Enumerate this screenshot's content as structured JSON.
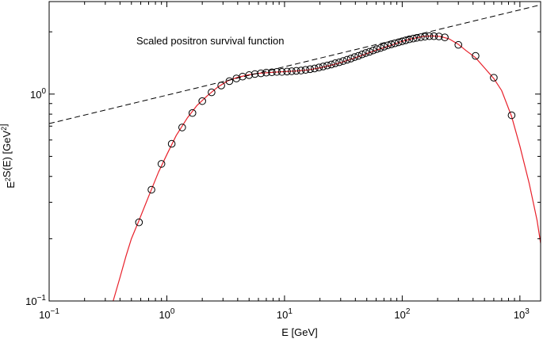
{
  "chart_data": {
    "type": "scatter",
    "title": "",
    "annotation": "Scaled positron survival function",
    "xlabel": "E [GeV]",
    "ylabel": "E^2 S(E) [GeV^2]",
    "xscale": "log",
    "yscale": "log",
    "xlim": [
      0.1,
      1500
    ],
    "ylim": [
      0.1,
      2.8
    ],
    "grid": false,
    "x_ticks": [
      {
        "value": 0.1,
        "base": "10",
        "exp": "−1"
      },
      {
        "value": 1,
        "base": "10",
        "exp": "0"
      },
      {
        "value": 10,
        "base": "10",
        "exp": "1"
      },
      {
        "value": 100,
        "base": "10",
        "exp": "2"
      },
      {
        "value": 1000,
        "base": "10",
        "exp": "3"
      }
    ],
    "y_ticks": [
      {
        "value": 0.1,
        "base": "10",
        "exp": "−1"
      },
      {
        "value": 1,
        "base": "10",
        "exp": "0"
      }
    ],
    "series": [
      {
        "kind": "markers",
        "marker": "open-circle",
        "color": "#000000",
        "x": [
          0.58,
          0.74,
          0.9,
          1.1,
          1.35,
          1.65,
          2.0,
          2.4,
          2.9,
          3.4,
          3.9,
          4.4,
          5.0,
          5.6,
          6.3,
          7.0,
          7.8,
          8.6,
          9.5,
          10.5,
          11.5,
          12.6,
          13.8,
          15.1,
          16.5,
          18.0,
          19.6,
          21.3,
          23.1,
          25.0,
          27.0,
          29.2,
          31.5,
          34.0,
          36.6,
          39.4,
          42.4,
          45.6,
          49.0,
          52.7,
          56.6,
          60.8,
          65.3,
          70.1,
          75.3,
          80.8,
          86.7,
          93.1,
          99.9,
          107,
          115,
          124,
          133,
          144,
          156,
          170,
          186,
          205,
          230,
          300,
          420,
          600,
          850
        ],
        "y": [
          0.24,
          0.345,
          0.46,
          0.575,
          0.69,
          0.81,
          0.925,
          1.02,
          1.1,
          1.155,
          1.19,
          1.215,
          1.235,
          1.25,
          1.26,
          1.27,
          1.275,
          1.28,
          1.28,
          1.285,
          1.29,
          1.295,
          1.3,
          1.31,
          1.32,
          1.33,
          1.345,
          1.36,
          1.375,
          1.39,
          1.41,
          1.425,
          1.445,
          1.465,
          1.485,
          1.51,
          1.53,
          1.555,
          1.58,
          1.6,
          1.625,
          1.65,
          1.67,
          1.695,
          1.72,
          1.74,
          1.76,
          1.78,
          1.8,
          1.82,
          1.84,
          1.855,
          1.87,
          1.885,
          1.895,
          1.905,
          1.905,
          1.9,
          1.88,
          1.73,
          1.53,
          1.2,
          0.79
        ]
      },
      {
        "kind": "line",
        "style": "solid",
        "color": "#e8202a",
        "x": [
          0.35,
          0.4,
          0.45,
          0.5,
          0.58,
          0.7,
          0.85,
          1.0,
          1.2,
          1.5,
          1.8,
          2.2,
          2.7,
          3.3,
          4.0,
          5.0,
          6.0,
          8.0,
          10,
          13,
          16,
          20,
          25,
          30,
          40,
          50,
          60,
          80,
          100,
          120,
          150,
          180,
          210,
          250,
          300,
          350,
          420,
          500,
          600,
          700,
          850,
          1000,
          1200,
          1400,
          1500
        ],
        "y": [
          0.1,
          0.13,
          0.165,
          0.2,
          0.245,
          0.32,
          0.42,
          0.51,
          0.63,
          0.77,
          0.88,
          0.98,
          1.08,
          1.16,
          1.205,
          1.24,
          1.26,
          1.275,
          1.285,
          1.295,
          1.31,
          1.34,
          1.38,
          1.42,
          1.5,
          1.57,
          1.63,
          1.72,
          1.8,
          1.85,
          1.9,
          1.91,
          1.9,
          1.85,
          1.74,
          1.62,
          1.5,
          1.34,
          1.19,
          1.04,
          0.78,
          0.56,
          0.37,
          0.245,
          0.19
        ]
      },
      {
        "kind": "line",
        "style": "dashed",
        "color": "#000000",
        "x": [
          0.1,
          1500
        ],
        "y": [
          0.72,
          2.7
        ]
      }
    ]
  }
}
